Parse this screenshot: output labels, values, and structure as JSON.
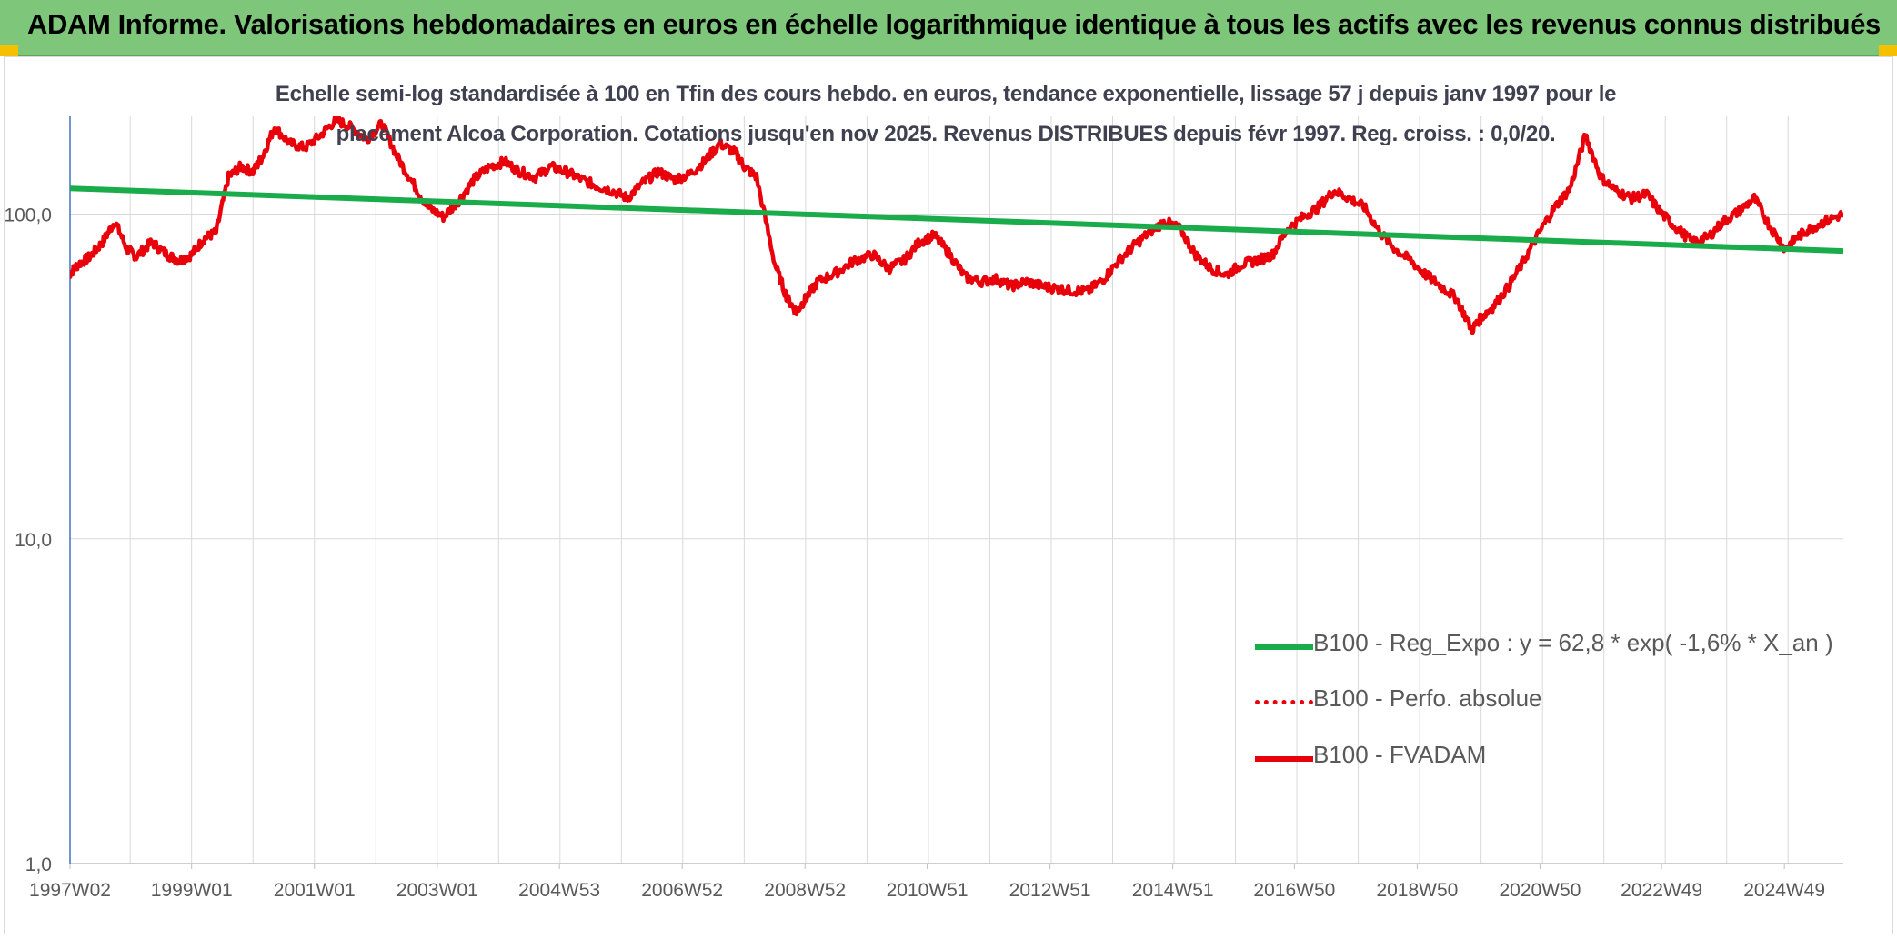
{
  "header": {
    "title": "ADAM Informe. Valorisations hebdomadaires en euros en échelle logarithmique identique à tous les actifs avec les revenus connus distribués"
  },
  "colors": {
    "banner": "#7dc67a",
    "trend": "#1aab4a",
    "fvadam": "#e8000b",
    "perfo": "#e8000b",
    "grid": "#d9d9d9",
    "axis": "#4472c4"
  },
  "chart_data": {
    "type": "line",
    "title_line1": "Echelle semi-log standardisée à 100 en Tfin des cours hebdo. en euros, tendance exponentielle, lissage 57 j depuis janv 1997 pour le",
    "title_line2": "placement Alcoa Corporation. Cotations jusqu'en nov 2025. Revenus DISTRIBUES depuis févr 1997. Reg. croiss. : 0,0/20.",
    "y_scale": "log",
    "ylim": [
      1,
      200
    ],
    "y_ticks": [
      {
        "value": 1,
        "label": "1,0"
      },
      {
        "value": 10,
        "label": "10,0"
      },
      {
        "value": 100,
        "label": "100,0"
      }
    ],
    "xlim": [
      1997.02,
      2025.9
    ],
    "x_ticks": [
      {
        "value": 1997.02,
        "label": "1997W02"
      },
      {
        "value": 1999.0,
        "label": "1999W01"
      },
      {
        "value": 2001.0,
        "label": "2001W01"
      },
      {
        "value": 2003.0,
        "label": "2003W01"
      },
      {
        "value": 2004.99,
        "label": "2004W53"
      },
      {
        "value": 2006.99,
        "label": "2006W52"
      },
      {
        "value": 2008.99,
        "label": "2008W52"
      },
      {
        "value": 2010.98,
        "label": "2010W51"
      },
      {
        "value": 2012.98,
        "label": "2012W51"
      },
      {
        "value": 2014.98,
        "label": "2014W51"
      },
      {
        "value": 2016.96,
        "label": "2016W50"
      },
      {
        "value": 2018.96,
        "label": "2018W50"
      },
      {
        "value": 2020.96,
        "label": "2020W50"
      },
      {
        "value": 2022.94,
        "label": "2022W49"
      },
      {
        "value": 2024.94,
        "label": "2024W49"
      }
    ],
    "grid": true,
    "legend_position": "bottom-right",
    "series": [
      {
        "name": "B100 - Reg_Expo : y = 62,8 * exp( -1,6% *  X_an )",
        "style": "solid-green",
        "x": [
          1997.02,
          2025.9
        ],
        "y": [
          120,
          77
        ]
      },
      {
        "name": "B100 - Perfo. absolue",
        "style": "dotted-red",
        "x": [],
        "y": []
      },
      {
        "name": "B100 - FVADAM",
        "style": "solid-red",
        "x": [
          1997.0,
          1997.15,
          1997.35,
          1997.55,
          1997.75,
          1997.95,
          1998.1,
          1998.35,
          1998.6,
          1998.8,
          1999.0,
          1999.2,
          1999.4,
          1999.6,
          1999.8,
          2000.0,
          2000.15,
          2000.35,
          2000.6,
          2000.85,
          2001.1,
          2001.35,
          2001.6,
          2001.85,
          2002.1,
          2002.35,
          2002.6,
          2002.85,
          2003.1,
          2003.35,
          2003.6,
          2003.85,
          2004.1,
          2004.35,
          2004.6,
          2004.85,
          2005.1,
          2005.35,
          2005.6,
          2005.85,
          2006.1,
          2006.35,
          2006.6,
          2006.85,
          2007.1,
          2007.35,
          2007.6,
          2007.85,
          2008.0,
          2008.2,
          2008.5,
          2008.7,
          2008.85,
          2009.0,
          2009.2,
          2009.5,
          2009.8,
          2010.1,
          2010.35,
          2010.6,
          2010.85,
          2011.1,
          2011.35,
          2011.6,
          2011.85,
          2012.1,
          2012.35,
          2012.6,
          2012.85,
          2013.1,
          2013.35,
          2013.6,
          2013.85,
          2014.1,
          2014.35,
          2014.6,
          2014.85,
          2015.1,
          2015.35,
          2015.6,
          2015.85,
          2016.1,
          2016.35,
          2016.6,
          2016.85,
          2017.1,
          2017.35,
          2017.6,
          2017.85,
          2018.1,
          2018.35,
          2018.6,
          2018.85,
          2019.1,
          2019.35,
          2019.6,
          2019.85,
          2020.0,
          2020.2,
          2020.45,
          2020.7,
          2020.95,
          2021.2,
          2021.45,
          2021.7,
          2021.95,
          2022.2,
          2022.45,
          2022.7,
          2022.95,
          2023.2,
          2023.45,
          2023.7,
          2023.95,
          2024.2,
          2024.45,
          2024.7,
          2024.95,
          2025.15,
          2025.35,
          2025.6,
          2025.9
        ],
        "y": [
          65,
          70,
          74,
          82,
          95,
          78,
          74,
          82,
          75,
          72,
          75,
          84,
          88,
          130,
          140,
          135,
          150,
          185,
          165,
          160,
          175,
          195,
          185,
          170,
          190,
          150,
          125,
          105,
          98,
          110,
          128,
          140,
          145,
          135,
          130,
          140,
          135,
          128,
          122,
          118,
          112,
          125,
          135,
          128,
          132,
          145,
          165,
          155,
          140,
          130,
          70,
          55,
          50,
          55,
          62,
          66,
          72,
          75,
          68,
          72,
          82,
          86,
          75,
          64,
          62,
          63,
          60,
          62,
          60,
          59,
          58,
          58,
          63,
          72,
          80,
          88,
          95,
          90,
          75,
          68,
          65,
          70,
          72,
          75,
          90,
          98,
          105,
          118,
          112,
          105,
          88,
          78,
          72,
          65,
          60,
          55,
          44,
          48,
          52,
          60,
          72,
          88,
          105,
          120,
          175,
          130,
          118,
          112,
          115,
          100,
          90,
          82,
          85,
          95,
          102,
          112,
          92,
          78,
          85,
          90,
          95,
          100
        ]
      }
    ]
  }
}
